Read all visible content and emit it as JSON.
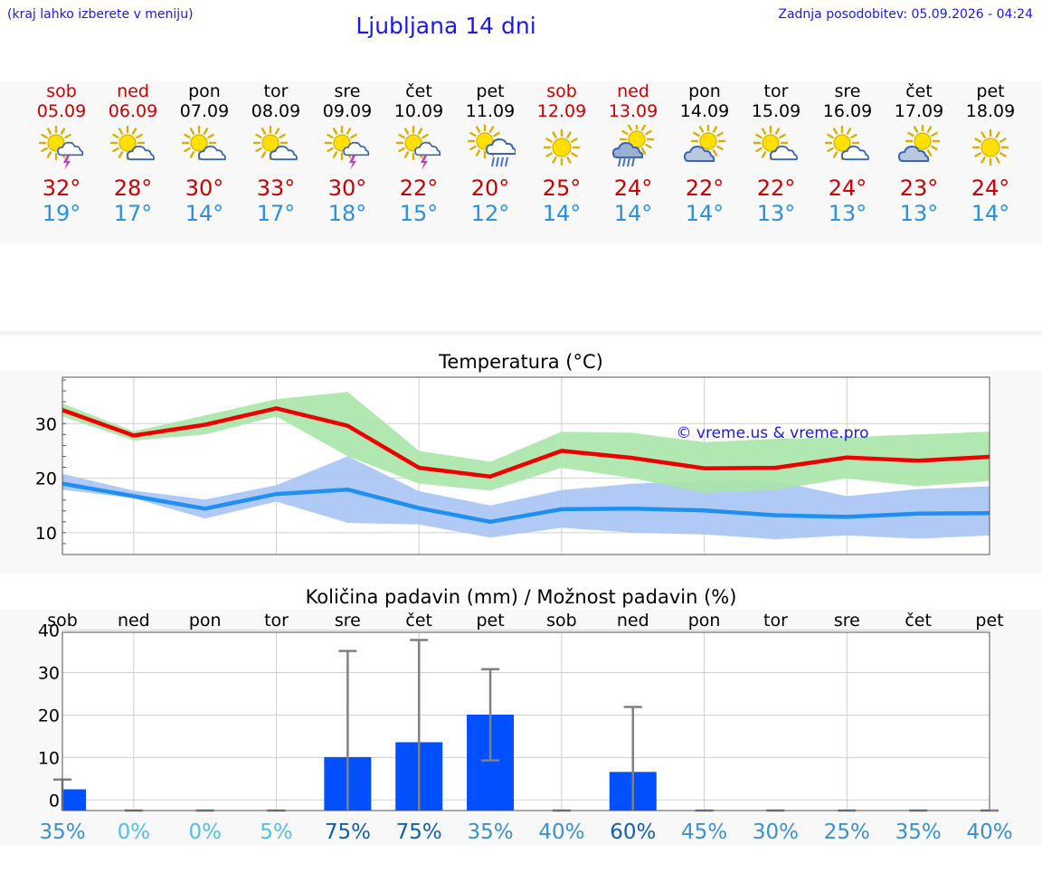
{
  "header": {
    "hint": "(kraj lahko izberete v meniju)",
    "title": "Ljubljana 14 dni",
    "updated": "Zadnja posodobitev: 05.09.2026 - 04:24"
  },
  "days": [
    {
      "name": "sob",
      "date": "05.09",
      "weekend": true,
      "icon": "sun-cloud-thunder-icon",
      "tmax": "32°",
      "tmin": "19°"
    },
    {
      "name": "ned",
      "date": "06.09",
      "weekend": true,
      "icon": "sun-cloud-icon",
      "tmax": "28°",
      "tmin": "17°"
    },
    {
      "name": "pon",
      "date": "07.09",
      "weekend": false,
      "icon": "sun-cloud-icon",
      "tmax": "30°",
      "tmin": "14°"
    },
    {
      "name": "tor",
      "date": "08.09",
      "weekend": false,
      "icon": "sun-cloud-icon",
      "tmax": "33°",
      "tmin": "17°"
    },
    {
      "name": "sre",
      "date": "09.09",
      "weekend": false,
      "icon": "sun-cloud-thunder-icon",
      "tmax": "30°",
      "tmin": "18°"
    },
    {
      "name": "čet",
      "date": "10.09",
      "weekend": false,
      "icon": "sun-cloud-thunder-icon",
      "tmax": "22°",
      "tmin": "15°"
    },
    {
      "name": "pet",
      "date": "11.09",
      "weekend": false,
      "icon": "sun-cloud-rain-icon",
      "tmax": "20°",
      "tmin": "12°"
    },
    {
      "name": "sob",
      "date": "12.09",
      "weekend": true,
      "icon": "sun-icon",
      "tmax": "25°",
      "tmin": "14°"
    },
    {
      "name": "ned",
      "date": "13.09",
      "weekend": true,
      "icon": "cloud-rain-sun-icon",
      "tmax": "24°",
      "tmin": "14°"
    },
    {
      "name": "pon",
      "date": "14.09",
      "weekend": false,
      "icon": "cloud-sun-icon",
      "tmax": "22°",
      "tmin": "14°"
    },
    {
      "name": "tor",
      "date": "15.09",
      "weekend": false,
      "icon": "sun-cloud-icon",
      "tmax": "22°",
      "tmin": "13°"
    },
    {
      "name": "sre",
      "date": "16.09",
      "weekend": false,
      "icon": "sun-cloud-icon",
      "tmax": "24°",
      "tmin": "13°"
    },
    {
      "name": "čet",
      "date": "17.09",
      "weekend": false,
      "icon": "cloud-sun-icon",
      "tmax": "23°",
      "tmin": "13°"
    },
    {
      "name": "pet",
      "date": "18.09",
      "weekend": false,
      "icon": "sun-icon",
      "tmax": "24°",
      "tmin": "14°"
    }
  ],
  "colors": {
    "max_line": "#ee0000",
    "max_band": "#a8e6a8",
    "min_line": "#2090f0",
    "min_band": "#a8c4f4",
    "bar": "#0050ff",
    "errbar": "#808080",
    "watermark": "#1a1ae6"
  },
  "chart_data": [
    {
      "type": "line",
      "title": "Temperatura (°C)",
      "watermark": "© vreme.us & vreme.pro",
      "x": [
        "05.09",
        "06.09",
        "07.09",
        "08.09",
        "09.09",
        "10.09",
        "11.09",
        "12.09",
        "13.09",
        "14.09",
        "15.09",
        "16.09",
        "17.09",
        "18.09"
      ],
      "ylim": [
        6,
        38.5
      ],
      "yticks": [
        10,
        20,
        30
      ],
      "grid": true,
      "series": [
        {
          "values": [
            32.5,
            27.8,
            29.8,
            32.8,
            29.6,
            21.9,
            20.3,
            25,
            23.7,
            21.8,
            21.9,
            23.8,
            23.2,
            23.9
          ],
          "band_low": [
            31.3,
            26.9,
            28,
            31.3,
            24,
            19,
            17.7,
            21.9,
            20,
            17.3,
            17.8,
            20,
            18.5,
            19.5
          ],
          "band_high": [
            33.7,
            28.6,
            31.5,
            34.5,
            35.8,
            25,
            23,
            28.5,
            28.3,
            26.6,
            27.2,
            27.5,
            28,
            28.5
          ]
        },
        {
          "values": [
            19,
            16.7,
            14.4,
            17.1,
            17.9,
            14.5,
            12,
            14.3,
            14.4,
            14.1,
            13.2,
            12.9,
            13.5,
            13.6
          ],
          "band_low": [
            17.9,
            16.3,
            12.6,
            15.7,
            11.8,
            11.5,
            9.1,
            10.9,
            10,
            9.7,
            8.8,
            9.5,
            8.9,
            9.5
          ],
          "band_high": [
            20.8,
            17.7,
            16.1,
            18.7,
            24,
            17.6,
            15,
            17.8,
            19,
            19.5,
            19.5,
            16.7,
            18,
            18.5
          ]
        }
      ]
    },
    {
      "type": "bar",
      "title": "Količina padavin (mm) / Možnost padavin (%)",
      "categories": [
        "sob",
        "ned",
        "pon",
        "tor",
        "sre",
        "čet",
        "pet",
        "sob",
        "ned",
        "pon",
        "tor",
        "sre",
        "čet",
        "pet"
      ],
      "ylim": [
        -2.5,
        39.5
      ],
      "yticks": [
        0,
        10,
        20,
        30,
        40
      ],
      "values": [
        2.5,
        0,
        0,
        0,
        10.1,
        13.6,
        20.1,
        0,
        6.6,
        0,
        0,
        0,
        0,
        0
      ],
      "err_low": [
        0,
        0,
        0,
        0,
        0,
        0,
        9.3,
        0,
        0,
        0,
        0,
        0,
        0,
        0
      ],
      "err_high": [
        4.8,
        0,
        0,
        0,
        35.1,
        37.7,
        30.8,
        0,
        21.9,
        0,
        0,
        0,
        0,
        0
      ],
      "probability": [
        "35%",
        "0%",
        "0%",
        "5%",
        "75%",
        "75%",
        "35%",
        "40%",
        "60%",
        "45%",
        "30%",
        "25%",
        "35%",
        "40%"
      ],
      "probability_values": [
        35,
        0,
        0,
        5,
        75,
        75,
        35,
        40,
        60,
        45,
        30,
        25,
        35,
        40
      ]
    }
  ]
}
